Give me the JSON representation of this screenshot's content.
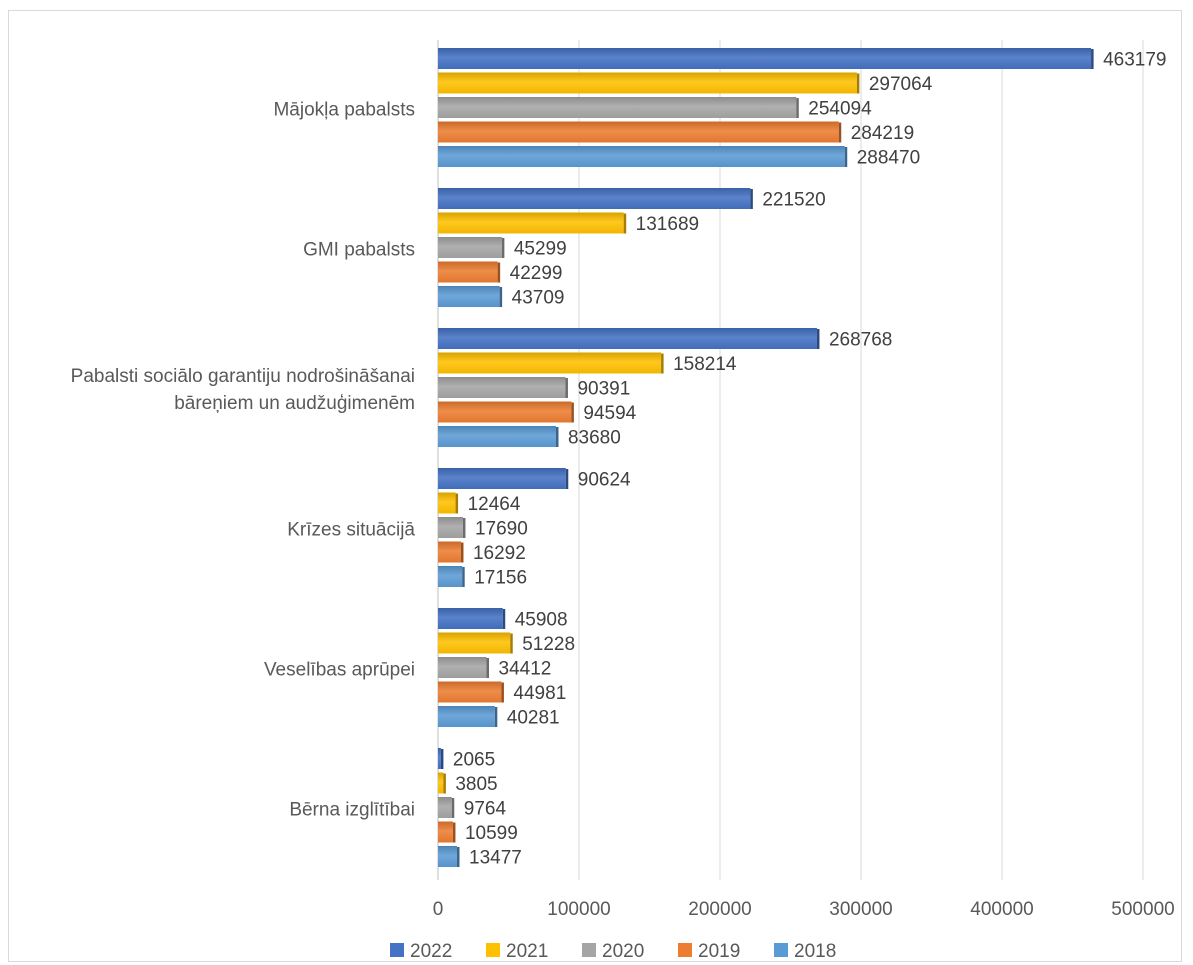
{
  "chart_data": {
    "type": "bar",
    "orientation": "horizontal",
    "title": "",
    "xlabel": "",
    "ylabel": "",
    "xlim": [
      0,
      500000
    ],
    "xticks": [
      "0",
      "100000",
      "200000",
      "300000",
      "400000",
      "500000"
    ],
    "grid": true,
    "legend_position": "bottom",
    "categories": [
      "Mājokļa pabalsts",
      "GMI pabalsts",
      "Pabalsti sociālo garantiju nodrošināšanai bāreņiem un  audžuģimenēm",
      "Krīzes situācijā",
      "Veselības aprūpei",
      "Bērna izglītībai"
    ],
    "category_lines": [
      [
        "Mājokļa pabalsts"
      ],
      [
        "GMI pabalsts"
      ],
      [
        "Pabalsti sociālo garantiju nodrošināšanai",
        "bāreņiem un  audžuģimenēm"
      ],
      [
        "Krīzes situācijā"
      ],
      [
        "Veselības aprūpei"
      ],
      [
        "Bērna izglītībai"
      ]
    ],
    "series": [
      {
        "name": "2022",
        "color": "#4472c4",
        "values": [
          463179,
          221520,
          268768,
          90624,
          45908,
          2065
        ]
      },
      {
        "name": "2021",
        "color": "#ffc000",
        "values": [
          297064,
          131689,
          158214,
          12464,
          51228,
          3805
        ]
      },
      {
        "name": "2020",
        "color": "#a5a5a5",
        "values": [
          254094,
          45299,
          90391,
          17690,
          34412,
          9764
        ]
      },
      {
        "name": "2019",
        "color": "#ed7d31",
        "values": [
          284219,
          42299,
          94594,
          16292,
          44981,
          10599
        ]
      },
      {
        "name": "2018",
        "color": "#5b9bd5",
        "values": [
          288470,
          43709,
          83680,
          17156,
          40281,
          13477
        ]
      }
    ]
  }
}
